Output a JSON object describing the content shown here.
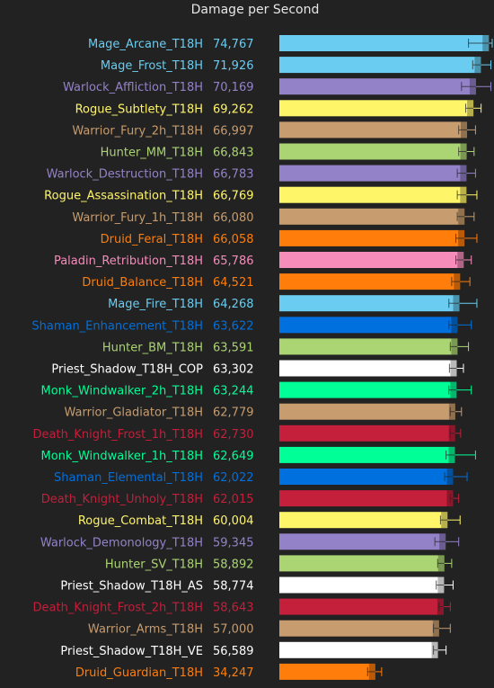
{
  "chart_data": {
    "type": "bar",
    "orientation": "horizontal",
    "title": "Damage per Second",
    "xlabel": "",
    "ylabel": "",
    "xlim": [
      0,
      75000
    ],
    "grid": false,
    "legend": "none",
    "categories": [
      "Mage_Arcane_T18H",
      "Mage_Frost_T18H",
      "Warlock_Affliction_T18H",
      "Rogue_Subtlety_T18H",
      "Warrior_Fury_2h_T18H",
      "Hunter_MM_T18H",
      "Warlock_Destruction_T18H",
      "Rogue_Assassination_T18H",
      "Warrior_Fury_1h_T18H",
      "Druid_Feral_T18H",
      "Paladin_Retribution_T18H",
      "Druid_Balance_T18H",
      "Mage_Fire_T18H",
      "Shaman_Enhancement_T18H",
      "Hunter_BM_T18H",
      "Priest_Shadow_T18H_COP",
      "Monk_Windwalker_2h_T18H",
      "Warrior_Gladiator_T18H",
      "Death_Knight_Frost_1h_T18H",
      "Monk_Windwalker_1h_T18H",
      "Shaman_Elemental_T18H",
      "Death_Knight_Unholy_T18H",
      "Rogue_Combat_T18H",
      "Warlock_Demonology_T18H",
      "Hunter_SV_T18H",
      "Priest_Shadow_T18H_AS",
      "Death_Knight_Frost_2h_T18H",
      "Warrior_Arms_T18H",
      "Priest_Shadow_T18H_VE",
      "Druid_Guardian_T18H"
    ],
    "values": [
      74767,
      71926,
      70169,
      69262,
      66997,
      66843,
      66783,
      66769,
      66080,
      66058,
      65786,
      64521,
      64268,
      63622,
      63591,
      63302,
      63244,
      62779,
      62730,
      62649,
      62022,
      62015,
      60004,
      59345,
      58892,
      58774,
      58643,
      57000,
      56589,
      34247
    ],
    "value_labels": [
      "74,767",
      "71,926",
      "70,169",
      "69,262",
      "66,997",
      "66,843",
      "66,783",
      "66,769",
      "66,080",
      "66,058",
      "65,786",
      "64,521",
      "64,268",
      "63,622",
      "63,591",
      "63,302",
      "63,244",
      "62,779",
      "62,730",
      "62,649",
      "62,022",
      "62,015",
      "60,004",
      "59,345",
      "58,892",
      "58,774",
      "58,643",
      "57,000",
      "56,589",
      "34,247"
    ],
    "error_ranges": [
      [
        67500,
        81500
      ],
      [
        69000,
        75500
      ],
      [
        65000,
        75500
      ],
      [
        66500,
        72000
      ],
      [
        64000,
        70000
      ],
      [
        64000,
        69500
      ],
      [
        63500,
        70000
      ],
      [
        63500,
        70500
      ],
      [
        63500,
        69500
      ],
      [
        63000,
        70500
      ],
      [
        63000,
        68500
      ],
      [
        61500,
        68000
      ],
      [
        60500,
        70500
      ],
      [
        60500,
        68500
      ],
      [
        61000,
        67500
      ],
      [
        60700,
        65700
      ],
      [
        60500,
        68500
      ],
      [
        61000,
        65000
      ],
      [
        61000,
        64700
      ],
      [
        59500,
        70000
      ],
      [
        59000,
        67000
      ],
      [
        61000,
        64000
      ],
      [
        57500,
        64500
      ],
      [
        55500,
        64000
      ],
      [
        56500,
        61500
      ],
      [
        56000,
        62000
      ],
      [
        57000,
        61000
      ],
      [
        55000,
        61000
      ],
      [
        55000,
        59500
      ],
      [
        31500,
        36500
      ]
    ],
    "colors": [
      "#69ccf0",
      "#69ccf0",
      "#9482c9",
      "#fff569",
      "#c79c6e",
      "#abd473",
      "#9482c9",
      "#fff569",
      "#c79c6e",
      "#ff7d0a",
      "#f58cba",
      "#ff7d0a",
      "#69ccf0",
      "#0070de",
      "#abd473",
      "#ffffff",
      "#00ff96",
      "#c79c6e",
      "#c41f3b",
      "#00ff96",
      "#0070de",
      "#c41f3b",
      "#fff569",
      "#9482c9",
      "#abd473",
      "#ffffff",
      "#c41f3b",
      "#c79c6e",
      "#ffffff",
      "#ff7d0a"
    ],
    "background_color": "#222222",
    "title_color": "#e6e6e6"
  }
}
